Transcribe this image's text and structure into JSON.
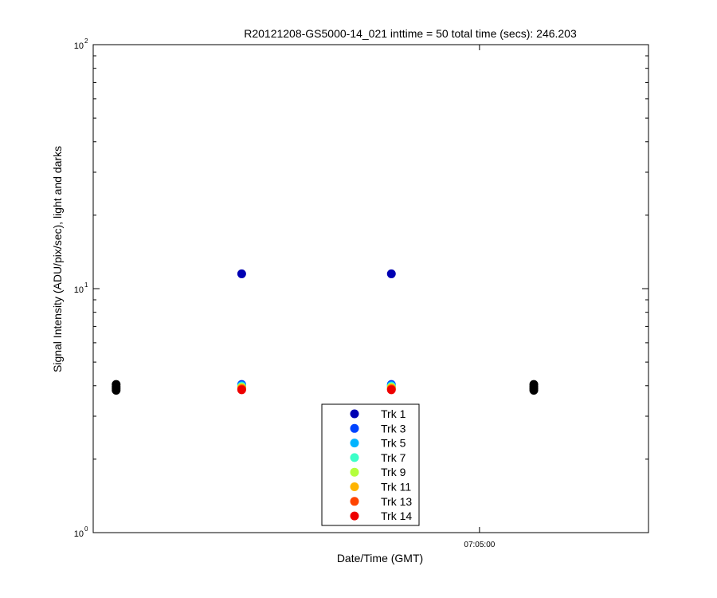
{
  "chart_data": {
    "type": "scatter",
    "title": "R20121208-GS5000-14_021 inttime = 50 total time (secs): 246.203",
    "xlabel": "Date/Time (GMT)",
    "ylabel": "Signal Intensity (ADU/pix/sec), light and darks",
    "yscale": "log",
    "ylim": [
      1,
      100
    ],
    "xlim": [
      "06:59:40",
      "07:07:20"
    ],
    "x_ticks": [
      {
        "value": "07:05:00",
        "label": "07:05:00"
      }
    ],
    "y_ticks": [
      {
        "value": 1,
        "base": "10",
        "exp": "0"
      },
      {
        "value": 10,
        "base": "10",
        "exp": "1"
      },
      {
        "value": 100,
        "base": "10",
        "exp": "2"
      }
    ],
    "grid": false,
    "legend_position": "bottom-center",
    "series": [
      {
        "name": "Trk 1",
        "color": "#0000b3",
        "x": [
          "07:01:43",
          "07:03:47"
        ],
        "y": [
          11.5,
          11.5
        ]
      },
      {
        "name": "Trk 3",
        "color": "#0044ff",
        "x": [
          "07:01:43",
          "07:03:47"
        ],
        "y": [
          4.05,
          4.05
        ]
      },
      {
        "name": "Trk 5",
        "color": "#00b4ff",
        "x": [
          "07:01:43",
          "07:03:47"
        ],
        "y": [
          4.0,
          4.0
        ]
      },
      {
        "name": "Trk 7",
        "color": "#3cffc8",
        "x": [
          "07:01:43",
          "07:03:47"
        ],
        "y": [
          3.97,
          3.97
        ]
      },
      {
        "name": "Trk 9",
        "color": "#b4ff3c",
        "x": [
          "07:01:43",
          "07:03:47"
        ],
        "y": [
          3.94,
          3.94
        ]
      },
      {
        "name": "Trk 11",
        "color": "#ffb400",
        "x": [
          "07:01:43",
          "07:03:47"
        ],
        "y": [
          3.91,
          3.91
        ]
      },
      {
        "name": "Trk 13",
        "color": "#ff4400",
        "x": [
          "07:01:43",
          "07:03:47"
        ],
        "y": [
          3.88,
          3.88
        ]
      },
      {
        "name": "Trk 14",
        "color": "#ee0000",
        "x": [
          "07:01:43",
          "07:03:47"
        ],
        "y": [
          3.85,
          3.85
        ]
      }
    ],
    "dark_points": {
      "color": "#000000",
      "x": [
        "06:59:59",
        "06:59:59",
        "06:59:59",
        "06:59:59",
        "07:05:45",
        "07:05:45",
        "07:05:45",
        "07:05:45"
      ],
      "y": [
        4.05,
        3.97,
        3.9,
        3.83,
        4.05,
        3.97,
        3.9,
        3.83
      ]
    }
  }
}
